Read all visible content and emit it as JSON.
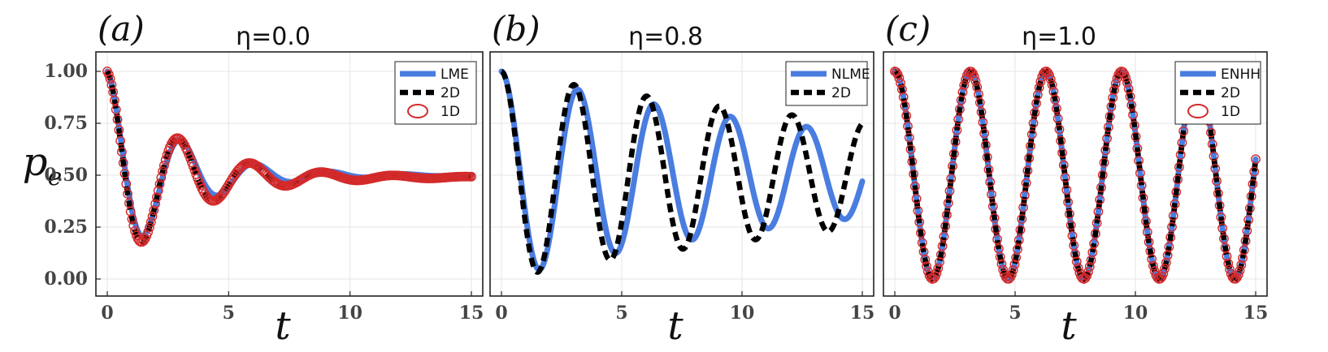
{
  "colors": {
    "blue": "#4a7de0",
    "black": "#000000",
    "red": "#d42a2a"
  },
  "ylabel": "p_e",
  "chart_data": [
    {
      "type": "line",
      "panel_label": "(a)",
      "title": "η=0.0",
      "xlabel": "t",
      "xlim": [
        0,
        15
      ],
      "ylim": [
        0,
        1
      ],
      "x_ticks": [
        "0",
        "5",
        "10",
        "15"
      ],
      "y_ticks": [
        "0.00",
        "0.25",
        "0.50",
        "0.75",
        "1.00"
      ],
      "legend_position": "top-right",
      "series": [
        {
          "name": "LME",
          "style": "solid-thick",
          "color": "#4a7de0",
          "model": {
            "offset": 0.5,
            "amp": 0.5,
            "omega": 2.05,
            "gamma": 0.36
          }
        },
        {
          "name": "2D",
          "style": "dashed",
          "color": "#000000",
          "model": {
            "offset": 0.49,
            "amp": 0.51,
            "omega": 2.12,
            "gamma": 0.34
          }
        },
        {
          "name": "1D",
          "style": "open-circles",
          "color": "#d42a2a",
          "model": {
            "offset": 0.49,
            "amp": 0.51,
            "omega": 2.12,
            "gamma": 0.34
          }
        }
      ]
    },
    {
      "type": "line",
      "panel_label": "(b)",
      "title": "η=0.8",
      "xlabel": "t",
      "xlim": [
        0,
        15
      ],
      "ylim": [
        0,
        1
      ],
      "x_ticks": [
        "0",
        "5",
        "10",
        "15"
      ],
      "y_ticks": [],
      "legend_position": "top-right",
      "series": [
        {
          "name": "NLME",
          "style": "solid-thick",
          "color": "#4a7de0",
          "model": {
            "offset": 0.5,
            "amp": 0.5,
            "omega": 1.98,
            "gamma": 0.06
          }
        },
        {
          "name": "2D",
          "style": "dashed",
          "color": "#000000",
          "model": {
            "offset": 0.5,
            "amp": 0.5,
            "omega": 2.08,
            "gamma": 0.045
          }
        }
      ]
    },
    {
      "type": "line",
      "panel_label": "(c)",
      "title": "η=1.0",
      "xlabel": "t",
      "xlim": [
        0,
        15
      ],
      "ylim": [
        0,
        1
      ],
      "x_ticks": [
        "0",
        "5",
        "10",
        "15"
      ],
      "y_ticks": [],
      "legend_position": "top-right",
      "series": [
        {
          "name": "ENHH",
          "style": "solid-thick",
          "color": "#4a7de0",
          "model": {
            "offset": 0.5,
            "amp": 0.5,
            "omega": 2.0,
            "gamma": 0.0
          }
        },
        {
          "name": "2D",
          "style": "dashed",
          "color": "#000000",
          "model": {
            "offset": 0.5,
            "amp": 0.5,
            "omega": 2.0,
            "gamma": 0.0
          }
        },
        {
          "name": "1D",
          "style": "open-circles",
          "color": "#d42a2a",
          "model": {
            "offset": 0.5,
            "amp": 0.5,
            "omega": 2.0,
            "gamma": 0.0
          }
        }
      ]
    }
  ]
}
